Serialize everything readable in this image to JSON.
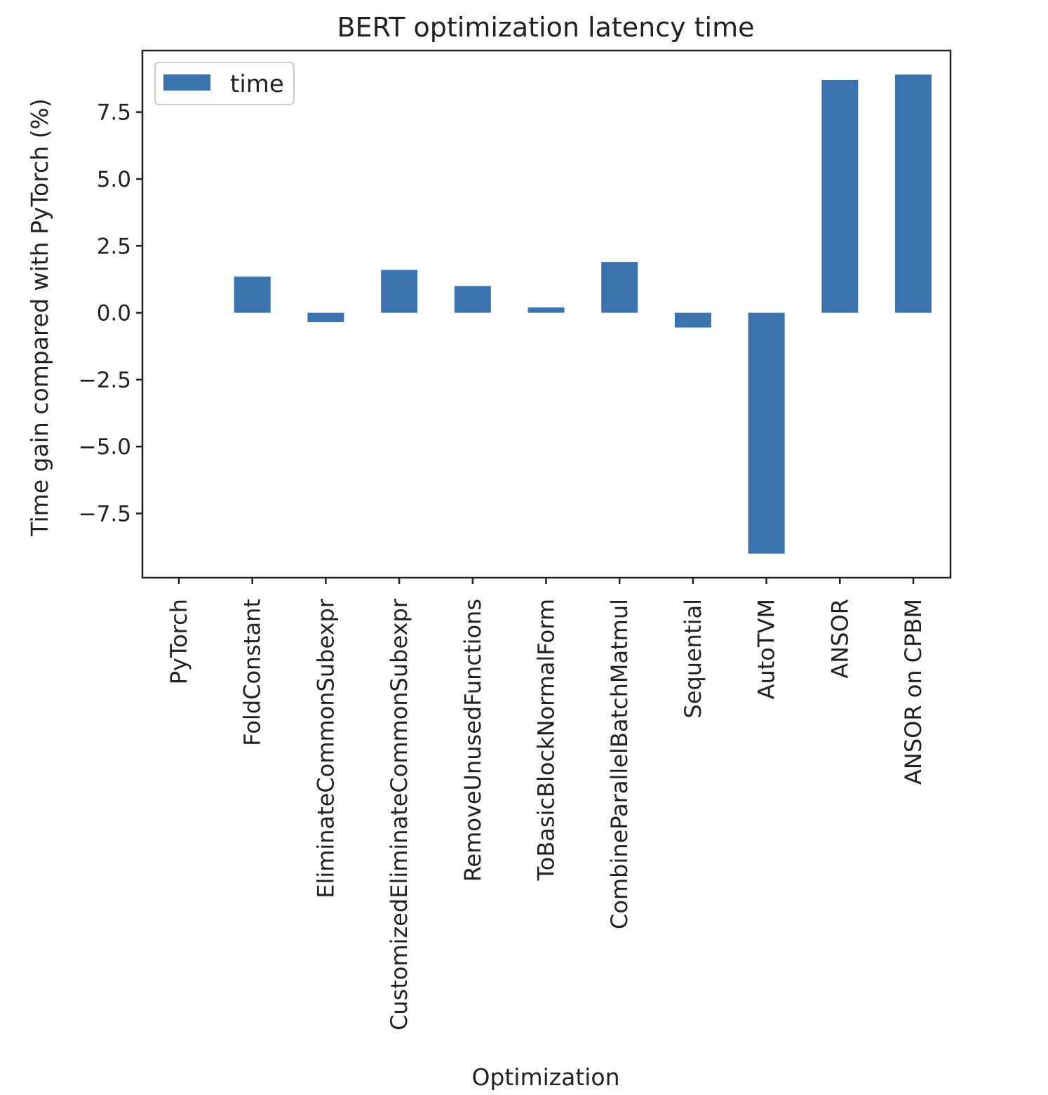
{
  "chart_data": {
    "type": "bar",
    "title": "BERT optimization latency time",
    "xlabel": "Optimization",
    "ylabel": "Time gain compared with PyTorch (%)",
    "categories": [
      "PyTorch",
      "FoldConstant",
      "EliminateCommonSubexpr",
      "CustomizedEliminateCommonSubexpr",
      "RemoveUnusedFunctions",
      "ToBasicBlockNormalForm",
      "CombineParallelBatchMatmul",
      "Sequential",
      "AutoTVM",
      "ANSOR",
      "ANSOR on CPBM"
    ],
    "series": [
      {
        "name": "time",
        "color": "#3a73ad",
        "values": [
          0.0,
          1.35,
          -0.35,
          1.6,
          1.0,
          0.2,
          1.9,
          -0.55,
          -9.0,
          8.7,
          8.9
        ]
      }
    ],
    "yticks": [
      -7.5,
      -5.0,
      -2.5,
      0.0,
      2.5,
      5.0,
      7.5
    ],
    "ytick_labels": [
      "−7.5",
      "−5.0",
      "−2.5",
      "0.0",
      "2.5",
      "5.0",
      "7.5"
    ],
    "ylim": [
      -9.9,
      9.8
    ],
    "legend": {
      "position": "top-left",
      "label": "time"
    },
    "grid": false
  }
}
